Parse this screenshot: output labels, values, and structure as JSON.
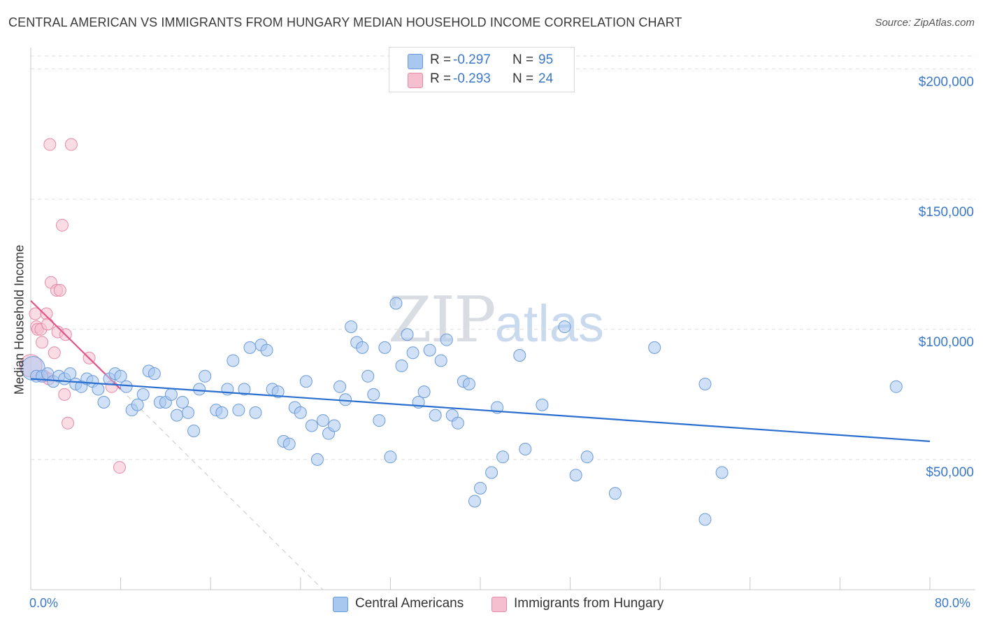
{
  "title": "CENTRAL AMERICAN VS IMMIGRANTS FROM HUNGARY MEDIAN HOUSEHOLD INCOME CORRELATION CHART",
  "source": "Source: ZipAtlas.com",
  "watermark": {
    "bold": "ZIP",
    "light": "atlas"
  },
  "legend": {
    "rows": [
      {
        "r_label": "R =",
        "r_value": "-0.297",
        "n_label": "N =",
        "n_value": "95",
        "color": "#a9c8f0"
      },
      {
        "r_label": "R =",
        "r_value": "-0.293",
        "n_label": "N =",
        "n_value": "24",
        "color": "#f6bfd0"
      }
    ]
  },
  "bottom_legend": [
    "Central Americans",
    "Immigrants from Hungary"
  ],
  "colors": {
    "blue_fill": "#a9c8f0",
    "blue_stroke": "#6a9ad8",
    "blue_line": "#2a6fd0",
    "pink_fill": "#f6bfd0",
    "pink_stroke": "#e58aa8",
    "pink_line": "#e0568a",
    "grid": "#dedede",
    "axis_text": "#3b78c8"
  },
  "chart_data": {
    "type": "scatter",
    "title": "CENTRAL AMERICAN VS IMMIGRANTS FROM HUNGARY MEDIAN HOUSEHOLD INCOME CORRELATION CHART",
    "xlabel": "",
    "ylabel": "Median Household Income",
    "xlim": [
      0,
      80
    ],
    "ylim": [
      0,
      205000
    ],
    "x_tick_labels": [
      "0.0%",
      "80.0%"
    ],
    "y_ticks": [
      50000,
      100000,
      150000,
      200000
    ],
    "y_tick_labels": [
      "$50,000",
      "$100,000",
      "$150,000",
      "$200,000"
    ],
    "grid": "horizontal dashed",
    "legend_position": "top-center",
    "series": [
      {
        "name": "Central Americans",
        "r": -0.297,
        "n": 95,
        "trend": {
          "x": [
            0,
            80
          ],
          "y": [
            81000,
            57000
          ]
        },
        "points": [
          [
            0.2,
            85000
          ],
          [
            0.5,
            82000
          ],
          [
            1.0,
            82000
          ],
          [
            1.5,
            83000
          ],
          [
            2.0,
            80000
          ],
          [
            2.5,
            82000
          ],
          [
            3.0,
            81000
          ],
          [
            3.5,
            83000
          ],
          [
            4.0,
            79000
          ],
          [
            4.5,
            78000
          ],
          [
            5.0,
            81000
          ],
          [
            5.5,
            80000
          ],
          [
            6.0,
            77000
          ],
          [
            6.5,
            72000
          ],
          [
            7.0,
            81000
          ],
          [
            7.5,
            83000
          ],
          [
            8.0,
            82000
          ],
          [
            8.5,
            78000
          ],
          [
            9.0,
            69000
          ],
          [
            9.5,
            71000
          ],
          [
            10.0,
            75000
          ],
          [
            10.5,
            84000
          ],
          [
            11.0,
            83000
          ],
          [
            11.5,
            72000
          ],
          [
            12.0,
            72000
          ],
          [
            12.5,
            75000
          ],
          [
            13.0,
            67000
          ],
          [
            13.5,
            72000
          ],
          [
            14.0,
            68000
          ],
          [
            14.5,
            61000
          ],
          [
            15.0,
            77000
          ],
          [
            15.5,
            82000
          ],
          [
            16.5,
            69000
          ],
          [
            17.0,
            68000
          ],
          [
            17.5,
            77000
          ],
          [
            18.0,
            88000
          ],
          [
            18.5,
            69000
          ],
          [
            19.0,
            77000
          ],
          [
            19.5,
            93000
          ],
          [
            20.0,
            68000
          ],
          [
            20.5,
            94000
          ],
          [
            21.0,
            92000
          ],
          [
            21.5,
            77000
          ],
          [
            22.0,
            76000
          ],
          [
            22.5,
            57000
          ],
          [
            23.0,
            56000
          ],
          [
            23.5,
            70000
          ],
          [
            24.0,
            68000
          ],
          [
            24.5,
            80000
          ],
          [
            25.0,
            63000
          ],
          [
            25.5,
            50000
          ],
          [
            26.0,
            65000
          ],
          [
            26.5,
            60000
          ],
          [
            27.0,
            63000
          ],
          [
            27.5,
            78000
          ],
          [
            28.0,
            73000
          ],
          [
            28.5,
            101000
          ],
          [
            29.0,
            95000
          ],
          [
            29.5,
            93000
          ],
          [
            30.0,
            82000
          ],
          [
            30.5,
            75000
          ],
          [
            31.0,
            65000
          ],
          [
            31.5,
            93000
          ],
          [
            32.0,
            51000
          ],
          [
            32.5,
            110000
          ],
          [
            33.0,
            86000
          ],
          [
            33.5,
            98000
          ],
          [
            34.0,
            91000
          ],
          [
            34.5,
            72000
          ],
          [
            35.0,
            76000
          ],
          [
            35.5,
            92000
          ],
          [
            36.0,
            67000
          ],
          [
            36.5,
            88000
          ],
          [
            37.0,
            96000
          ],
          [
            37.5,
            67000
          ],
          [
            38.0,
            64000
          ],
          [
            38.5,
            80000
          ],
          [
            39.0,
            79000
          ],
          [
            39.5,
            34000
          ],
          [
            40.0,
            39000
          ],
          [
            41.0,
            45000
          ],
          [
            41.5,
            70000
          ],
          [
            42.0,
            51000
          ],
          [
            43.5,
            90000
          ],
          [
            44.0,
            54000
          ],
          [
            45.5,
            71000
          ],
          [
            47.5,
            101000
          ],
          [
            48.5,
            44000
          ],
          [
            49.5,
            51000
          ],
          [
            52.0,
            37000
          ],
          [
            55.5,
            93000
          ],
          [
            60.0,
            79000
          ],
          [
            60.0,
            27000
          ],
          [
            61.5,
            45000
          ],
          [
            77.0,
            78000
          ]
        ]
      },
      {
        "name": "Immigrants from Hungary",
        "r": -0.293,
        "n": 24,
        "trend": {
          "x": [
            0,
            8
          ],
          "y": [
            111000,
            77000
          ],
          "dashed_extension_to": [
            26,
            0
          ]
        },
        "points": [
          [
            0.0,
            86000
          ],
          [
            0.4,
            106000
          ],
          [
            0.5,
            101000
          ],
          [
            0.6,
            100000
          ],
          [
            0.9,
            100000
          ],
          [
            1.0,
            95000
          ],
          [
            1.2,
            82000
          ],
          [
            1.4,
            106000
          ],
          [
            1.5,
            102000
          ],
          [
            1.6,
            81000
          ],
          [
            1.7,
            171000
          ],
          [
            1.8,
            118000
          ],
          [
            2.1,
            91000
          ],
          [
            2.3,
            115000
          ],
          [
            2.4,
            99000
          ],
          [
            2.6,
            115000
          ],
          [
            2.8,
            140000
          ],
          [
            3.0,
            75000
          ],
          [
            3.1,
            98000
          ],
          [
            3.3,
            64000
          ],
          [
            3.6,
            171000
          ],
          [
            5.2,
            89000
          ],
          [
            7.2,
            78000
          ],
          [
            7.9,
            47000
          ]
        ]
      }
    ]
  }
}
